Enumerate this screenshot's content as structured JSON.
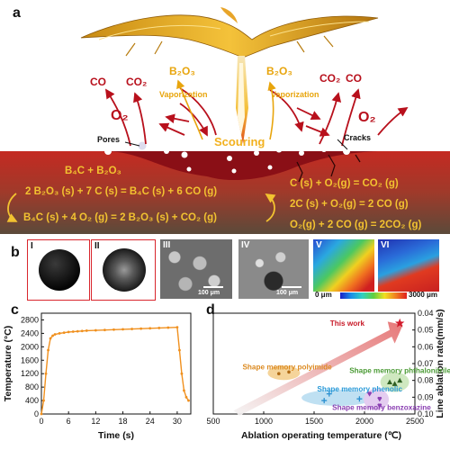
{
  "panel_a": {
    "letter": "a",
    "co_left": "CO",
    "co2_left": "CO₂",
    "b2o3_left": "B₂O₃",
    "vapor_left": "Vaporization",
    "o2_left": "O₂",
    "b2o3_right": "B₂O₃",
    "co2_right": "CO₂",
    "co_right": "CO",
    "vapor_right": "Vaporization",
    "o2_right": "O₂",
    "pores": "Pores",
    "scouring": "Scouring",
    "cracks": "Cracks",
    "b4c_b2o3": "B₄C + B₂O₃",
    "eq1": "2 B₂O₃ (s) + 7 C (s) = B₄C (s) + 6 CO (g)",
    "eq2": "B₄C (s) + 4 O₂ (g) = 2 B₂O₃ (s) + CO₂ (g)",
    "eq3": "C (s) + O₂(g) = CO₂ (g)",
    "eq4": "2C (s) + O₂(g) = 2 CO (g)",
    "eq5": "O₂(g) + 2 CO (g) = 2CO₂ (g)"
  },
  "panel_b": {
    "letter": "b",
    "labels": [
      "I",
      "II",
      "III",
      "IV",
      "V",
      "VI"
    ],
    "scale_bar": "100 μm",
    "colorbar_min": "0 μm",
    "colorbar_max": "3000 μm"
  },
  "panel_c": {
    "letter": "c",
    "chart_data": {
      "type": "line",
      "xlabel": "Time (s)",
      "ylabel": "Temperature (°C)",
      "xlim": [
        0,
        33
      ],
      "ylim": [
        0,
        3000
      ],
      "x_ticks": [
        "0",
        "6",
        "12",
        "18",
        "24",
        "30"
      ],
      "y_ticks": [
        "0",
        "400",
        "800",
        "1200",
        "1600",
        "2000",
        "2400",
        "2800"
      ],
      "color": "#f0901e",
      "x": [
        0,
        0.5,
        1,
        1.5,
        2,
        2.5,
        3,
        4,
        5,
        6,
        7,
        8,
        9,
        10,
        12,
        14,
        16,
        18,
        20,
        22,
        24,
        26,
        28,
        30,
        30.5,
        31,
        31.5,
        32,
        32.5
      ],
      "y": [
        0,
        400,
        1200,
        1900,
        2250,
        2330,
        2370,
        2400,
        2420,
        2440,
        2450,
        2460,
        2470,
        2480,
        2490,
        2500,
        2510,
        2520,
        2530,
        2540,
        2550,
        2560,
        2570,
        2580,
        1900,
        1200,
        700,
        500,
        400
      ]
    }
  },
  "panel_d": {
    "letter": "d",
    "chart_data": {
      "type": "scatter",
      "xlabel": "Ablation operating temperature (℃)",
      "ylabel": "Line ablation rate(mm/s)",
      "xlim": [
        500,
        2500
      ],
      "ylim": [
        0.04,
        0.1
      ],
      "x_ticks": [
        "500",
        "1000",
        "1500",
        "2000",
        "2500"
      ],
      "y_ticks": [
        "0.04",
        "0.05",
        "0.06",
        "0.07",
        "0.08",
        "0.09",
        "0.10"
      ],
      "series": [
        {
          "name": "This work",
          "color": "#d21a2b",
          "x": [
            2350
          ],
          "y": [
            0.046
          ]
        },
        {
          "name": "Shape memory polyimide",
          "color": "#e8a24a",
          "x": [
            1150,
            1250
          ],
          "y": [
            0.076,
            0.075
          ]
        },
        {
          "name": "Shape memory phthalonitrile",
          "color": "#5aa646",
          "x": [
            2250,
            2300,
            2350
          ],
          "y": [
            0.081,
            0.082,
            0.08
          ]
        },
        {
          "name": "Shape memory phenolic",
          "color": "#2a8fd0",
          "x": [
            1600,
            1650,
            1950
          ],
          "y": [
            0.092,
            0.088,
            0.091
          ]
        },
        {
          "name": "Shape memory benzoxazine",
          "color": "#8a3fb2",
          "x": [
            2050,
            2150,
            2150
          ],
          "y": [
            0.088,
            0.091,
            0.095
          ]
        }
      ]
    }
  }
}
